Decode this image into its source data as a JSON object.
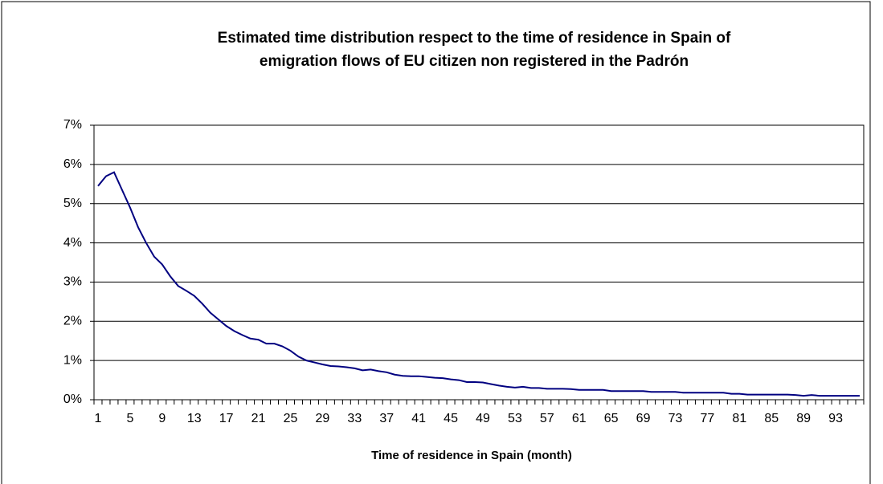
{
  "chart_data": {
    "type": "line",
    "title": [
      "Estimated time distribution respect to the time of residence in Spain of",
      "emigration flows of EU citizen non registered in the Padrón"
    ],
    "x_label": "Time of residence in Spain (month)",
    "categories": [
      "1",
      null,
      null,
      null,
      "5",
      null,
      null,
      null,
      "9",
      null,
      null,
      null,
      "13",
      null,
      null,
      null,
      "17",
      null,
      null,
      null,
      "21",
      null,
      null,
      null,
      "25",
      null,
      null,
      null,
      "29",
      null,
      null,
      null,
      "33",
      null,
      null,
      null,
      "37",
      null,
      null,
      null,
      "41",
      null,
      null,
      null,
      "45",
      null,
      null,
      null,
      "49",
      null,
      null,
      null,
      "53",
      null,
      null,
      null,
      "57",
      null,
      null,
      null,
      "61",
      null,
      null,
      null,
      "65",
      null,
      null,
      null,
      "69",
      null,
      null,
      null,
      "73",
      null,
      null,
      null,
      "77",
      null,
      null,
      null,
      "81",
      null,
      null,
      null,
      "85",
      null,
      null,
      null,
      "89",
      null,
      null,
      null,
      "93",
      null,
      null,
      null
    ],
    "series": [
      {
        "color": "#000080",
        "values": [
          5.45,
          5.7,
          5.8,
          5.35,
          4.9,
          4.4,
          4.0,
          3.65,
          3.45,
          3.15,
          2.9,
          2.78,
          2.65,
          2.45,
          2.22,
          2.05,
          1.88,
          1.75,
          1.65,
          1.56,
          1.53,
          1.43,
          1.43,
          1.36,
          1.25,
          1.1,
          1.0,
          0.95,
          0.9,
          0.86,
          0.85,
          0.83,
          0.8,
          0.75,
          0.77,
          0.73,
          0.7,
          0.64,
          0.61,
          0.6,
          0.6,
          0.58,
          0.56,
          0.55,
          0.52,
          0.5,
          0.45,
          0.45,
          0.44,
          0.4,
          0.36,
          0.33,
          0.31,
          0.33,
          0.3,
          0.3,
          0.28,
          0.28,
          0.28,
          0.27,
          0.25,
          0.25,
          0.25,
          0.25,
          0.22,
          0.22,
          0.22,
          0.22,
          0.22,
          0.2,
          0.2,
          0.2,
          0.2,
          0.18,
          0.18,
          0.18,
          0.18,
          0.18,
          0.18,
          0.15,
          0.15,
          0.13,
          0.13,
          0.13,
          0.13,
          0.13,
          0.13,
          0.12,
          0.1,
          0.12,
          0.1,
          0.1,
          0.1,
          0.1,
          0.1,
          0.1
        ]
      }
    ],
    "ylim": [
      0,
      7
    ],
    "yticks": [
      {
        "value": 0,
        "label": "0%"
      },
      {
        "value": 1,
        "label": "1%"
      },
      {
        "value": 2,
        "label": "2%"
      },
      {
        "value": 3,
        "label": "3%"
      },
      {
        "value": 4,
        "label": "4%"
      },
      {
        "value": 5,
        "label": "5%"
      },
      {
        "value": 6,
        "label": "6%"
      },
      {
        "value": 7,
        "label": "7%"
      }
    ],
    "grid": true
  }
}
